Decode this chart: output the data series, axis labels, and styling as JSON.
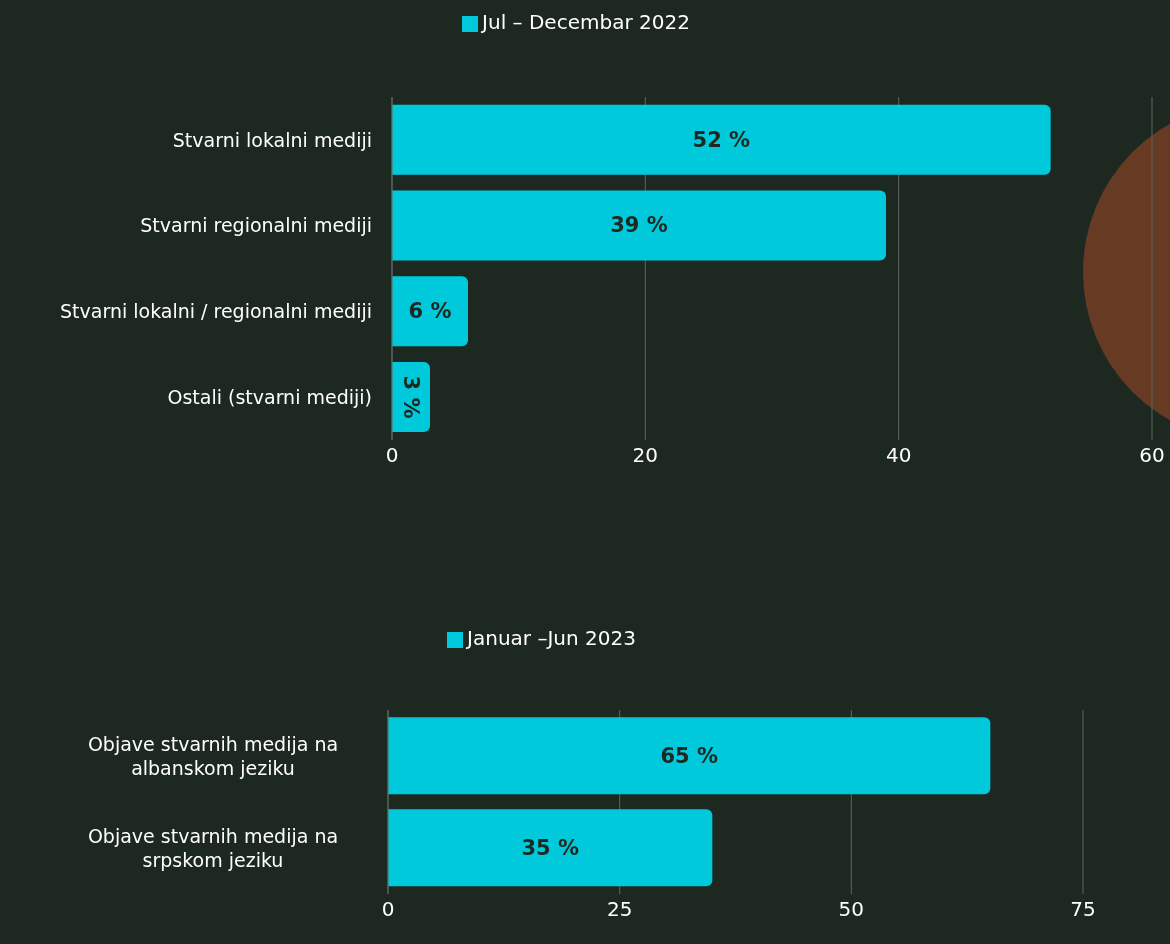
{
  "chart_data": [
    {
      "type": "bar",
      "orientation": "horizontal",
      "categories": [
        "Stvarni lokalni mediji",
        "Stvarni regionalni mediji",
        "Stvarni lokalni / regionalni mediji",
        "Ostali (stvarni mediji)"
      ],
      "series": [
        {
          "name": "Jul – Decembar 2022",
          "color": "#00c9dc",
          "values": [
            52,
            39,
            6,
            3
          ],
          "value_labels": [
            "52 %",
            "39 %",
            "6 %",
            "3 %"
          ]
        }
      ],
      "xlim": [
        0,
        60
      ],
      "xticks": [
        0,
        20,
        40,
        60
      ],
      "grid": "x",
      "legend": "top"
    },
    {
      "type": "bar",
      "orientation": "horizontal",
      "categories": [
        "Objave stvarnih medija na albanskom jeziku",
        "Objave stvarnih medija na srpskom jeziku"
      ],
      "series": [
        {
          "name": "Januar –Jun 2023",
          "color": "#00c9dc",
          "values": [
            65,
            35
          ],
          "value_labels": [
            "65 %",
            "35 %"
          ]
        }
      ],
      "xlim": [
        0,
        75
      ],
      "xticks": [
        0,
        25,
        50,
        75
      ],
      "grid": "x",
      "legend": "top"
    }
  ]
}
